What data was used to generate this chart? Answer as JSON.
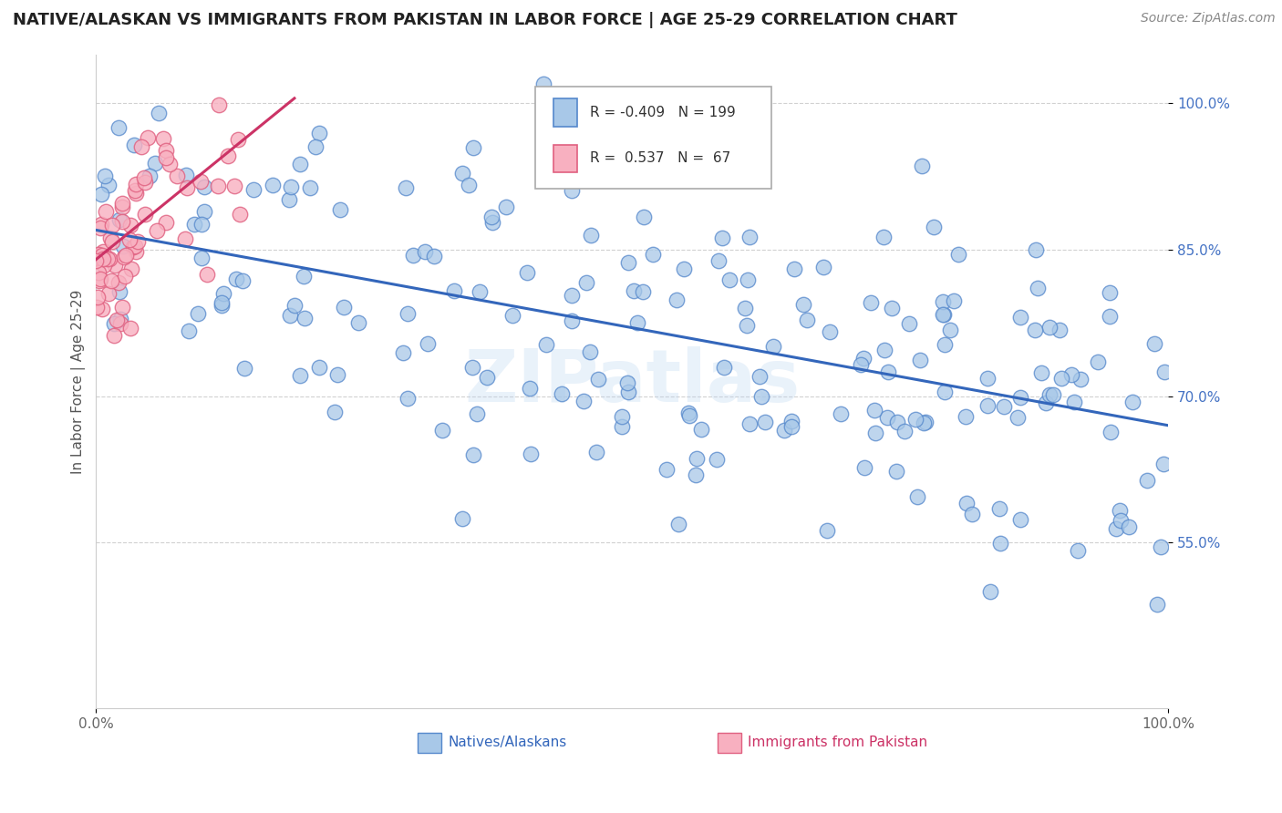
{
  "title": "NATIVE/ALASKAN VS IMMIGRANTS FROM PAKISTAN IN LABOR FORCE | AGE 25-29 CORRELATION CHART",
  "source": "Source: ZipAtlas.com",
  "ylabel": "In Labor Force | Age 25-29",
  "xmin": 0.0,
  "xmax": 1.0,
  "ymin": 0.38,
  "ymax": 1.05,
  "yticks": [
    0.55,
    0.7,
    0.85,
    1.0
  ],
  "ytick_labels": [
    "55.0%",
    "70.0%",
    "85.0%",
    "100.0%"
  ],
  "xtick_labels": [
    "0.0%",
    "100.0%"
  ],
  "xticks": [
    0.0,
    1.0
  ],
  "blue_R": -0.409,
  "blue_N": 199,
  "pink_R": 0.537,
  "pink_N": 67,
  "blue_color": "#a8c8e8",
  "blue_edge_color": "#5588cc",
  "blue_line_color": "#3366bb",
  "pink_color": "#f8b0c0",
  "pink_edge_color": "#e06080",
  "pink_line_color": "#cc3366",
  "legend_label_blue": "Natives/Alaskans",
  "legend_label_pink": "Immigrants from Pakistan",
  "watermark": "ZIPatlas",
  "background_color": "#ffffff",
  "title_fontsize": 13,
  "source_fontsize": 10,
  "blue_trend_x0": 0.0,
  "blue_trend_x1": 1.0,
  "blue_trend_y0": 0.87,
  "blue_trend_y1": 0.67,
  "pink_trend_x0": 0.0,
  "pink_trend_x1": 0.185,
  "pink_trend_y0": 0.84,
  "pink_trend_y1": 1.005
}
